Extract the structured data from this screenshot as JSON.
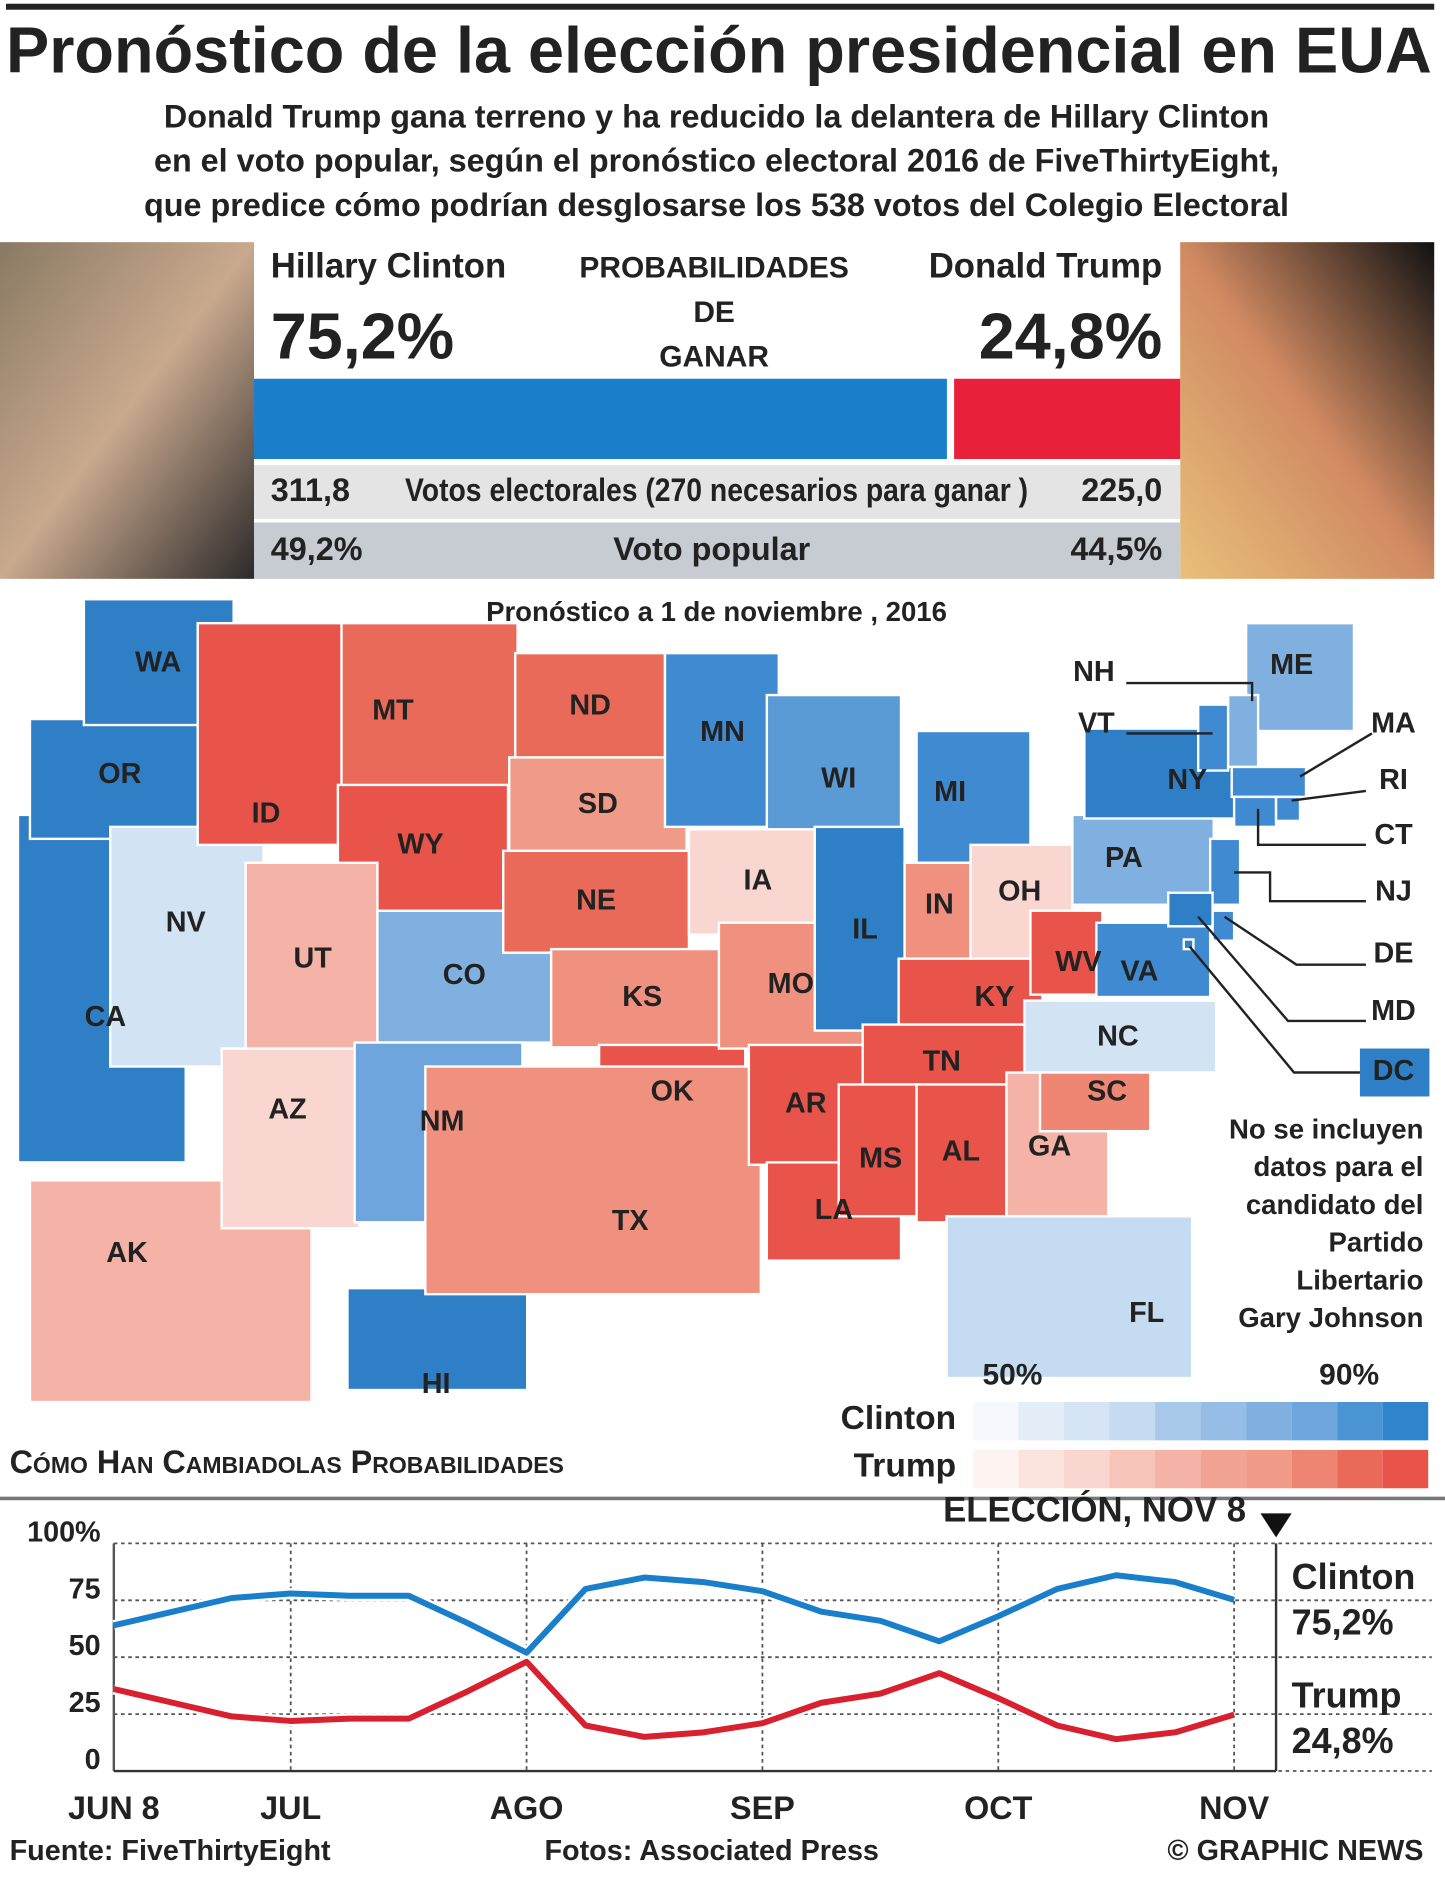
{
  "header": {
    "title": "Pronóstico de la elección presidencial en EUA",
    "subtitle": [
      "Donald Trump gana terreno y ha reducido la delantera de Hillary Clinton",
      "en el voto popular, según el pronóstico electoral 2016 de FiveThirtyEight,",
      "que predice cómo podrían desglosarse los 538 votos del Colegio Electoral"
    ]
  },
  "panel": {
    "names": [
      "Hillary Clinton",
      "Donald Trump"
    ],
    "odds_title": [
      "PROBABILIDADES",
      "DE",
      "GANAR"
    ],
    "odds": {
      "values": [
        75.2,
        24.8
      ],
      "value_labels": [
        "75,2%",
        "24,8%"
      ],
      "colors": [
        "#1a7fcb",
        "#e8203a"
      ]
    },
    "electoral": {
      "label": "Votos electorales (270 necesarios para ganar )",
      "values": [
        "311,8",
        "225,0"
      ]
    },
    "popular": {
      "label": "Voto popular",
      "values": [
        "49,2%",
        "44,5%"
      ]
    }
  },
  "map": {
    "title": "Pronóstico a 1 de noviembre , 2016",
    "states": [
      {
        "label": "AK",
        "color": "#f4b3a6"
      },
      {
        "label": "HI",
        "color": "#2f7fc6"
      },
      {
        "label": "CA",
        "color": "#2f7fc6"
      },
      {
        "label": "OR",
        "color": "#2f7fc6"
      },
      {
        "label": "WA",
        "color": "#2f7fc6"
      },
      {
        "label": "NV",
        "color": "#d2e3f4"
      },
      {
        "label": "MT",
        "color": "#ea6a5a"
      },
      {
        "label": "ID",
        "color": "#e8534a"
      },
      {
        "label": "WY",
        "color": "#e8534a"
      },
      {
        "label": "UT",
        "color": "#f4b3a6"
      },
      {
        "label": "CO",
        "color": "#7fb0e0"
      },
      {
        "label": "AZ",
        "color": "#f9d7d0"
      },
      {
        "label": "NM",
        "color": "#6ea5dc"
      },
      {
        "label": "ND",
        "color": "#ea6a5a"
      },
      {
        "label": "SD",
        "color": "#f09a88"
      },
      {
        "label": "NE",
        "color": "#ea6a5a"
      },
      {
        "label": "KS",
        "color": "#f0907e"
      },
      {
        "label": "OK",
        "color": "#e8534a"
      },
      {
        "label": "TX",
        "color": "#f0907e"
      },
      {
        "label": "MN",
        "color": "#3f8ad0"
      },
      {
        "label": "IA",
        "color": "#f9d7d0"
      },
      {
        "label": "MO",
        "color": "#f0907e"
      },
      {
        "label": "AR",
        "color": "#e8534a"
      },
      {
        "label": "LA",
        "color": "#e8534a"
      },
      {
        "label": "WI",
        "color": "#5b9bd5"
      },
      {
        "label": "IL",
        "color": "#2f7fc6"
      },
      {
        "label": "MI",
        "color": "#3f8ad0"
      },
      {
        "label": "IN",
        "color": "#f0907e"
      },
      {
        "label": "OH",
        "color": "#f9d7d0"
      },
      {
        "label": "KY",
        "color": "#e8534a"
      },
      {
        "label": "TN",
        "color": "#e8534a"
      },
      {
        "label": "MS",
        "color": "#e8534a"
      },
      {
        "label": "AL",
        "color": "#e8534a"
      },
      {
        "label": "GA",
        "color": "#f4b3a6"
      },
      {
        "label": "FL",
        "color": "#c4dbf1"
      },
      {
        "label": "SC",
        "color": "#ef8573"
      },
      {
        "label": "NC",
        "color": "#d2e3f4"
      },
      {
        "label": "WV",
        "color": "#e8534a"
      },
      {
        "label": "VA",
        "color": "#3f8ad0"
      },
      {
        "label": "PA",
        "color": "#7fb0e0"
      },
      {
        "label": "NY",
        "color": "#2f7fc6"
      },
      {
        "label": "ME",
        "color": "#7fb0e0"
      },
      {
        "label": "VT",
        "color": "#3f8ad0"
      },
      {
        "label": "NH",
        "color": "#7fb0e0"
      },
      {
        "label": "MA",
        "color": "#3f8ad0"
      },
      {
        "label": "CT",
        "color": "#3f8ad0"
      },
      {
        "label": "RI",
        "color": "#3f8ad0"
      },
      {
        "label": "NJ",
        "color": "#3f8ad0"
      },
      {
        "label": "DE",
        "color": "#3f8ad0"
      },
      {
        "label": "MD",
        "color": "#2f7fc6"
      },
      {
        "label": "DC",
        "color": "#2f7fc6"
      }
    ],
    "note": [
      "No se incluyen",
      "datos para el",
      "candidato del",
      "Partido",
      "Libertario",
      "Gary Johnson"
    ],
    "legend": {
      "labels": [
        "50%",
        "90%"
      ],
      "rows": [
        {
          "name": "Clinton",
          "colors": [
            "#f5f8fc",
            "#e4eef9",
            "#d6e5f5",
            "#c4dbf1",
            "#a9c9ea",
            "#96bde6",
            "#7fb0e0",
            "#6ea5dc",
            "#4a94d4",
            "#2f84cc"
          ]
        },
        {
          "name": "Trump",
          "colors": [
            "#fdf3f1",
            "#fbe3de",
            "#f9d7d0",
            "#f6c4b9",
            "#f4b3a6",
            "#f2a394",
            "#f09a88",
            "#ee8573",
            "#ea6a5a",
            "#e8534a"
          ]
        }
      ]
    }
  },
  "chart_data": {
    "type": "line",
    "title": "Cómo Han Cambiadolas Probabilidades",
    "annotation": "ELECCIÓN, NOV 8",
    "categories": [
      "JUN 8",
      null,
      null,
      "JUL",
      null,
      null,
      null,
      "AGO",
      null,
      null,
      null,
      "SEP",
      null,
      null,
      null,
      "OCT",
      null,
      null,
      null,
      "NOV"
    ],
    "series": [
      {
        "name": "Clinton",
        "color": "#1a7fcb",
        "values": [
          64,
          70,
          76,
          78,
          77,
          77,
          65,
          52,
          80,
          85,
          83,
          79,
          70,
          66,
          57,
          68,
          80,
          86,
          83,
          75.2
        ],
        "value_labels": [
          null,
          null,
          null,
          null,
          null,
          null,
          null,
          null,
          null,
          null,
          null,
          null,
          null,
          null,
          null,
          null,
          null,
          null,
          null,
          "75,2%"
        ]
      },
      {
        "name": "Trump",
        "color": "#d8202e",
        "values": [
          36,
          30,
          24,
          22,
          23,
          23,
          35,
          48,
          20,
          15,
          17,
          21,
          30,
          34,
          43,
          32,
          20,
          14,
          17,
          24.8
        ],
        "value_labels": [
          null,
          null,
          null,
          null,
          null,
          null,
          null,
          null,
          null,
          null,
          null,
          null,
          null,
          null,
          null,
          null,
          null,
          null,
          null,
          "24,8%"
        ]
      }
    ],
    "ylim": [
      0,
      100
    ],
    "yticks": [
      0,
      25,
      50,
      75,
      {
        "value": 100,
        "label": "100%"
      }
    ],
    "grid": true
  },
  "footer": [
    "Fuente: FiveThirtyEight",
    "Fotos: Associated Press",
    "© GRAPHIC NEWS"
  ]
}
